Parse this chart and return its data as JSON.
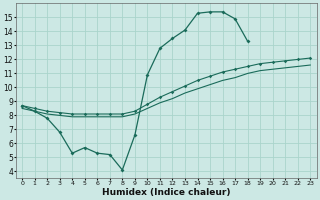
{
  "xlabel": "Humidex (Indice chaleur)",
  "background_color": "#cce8e4",
  "grid_color": "#aad4cc",
  "line_color": "#1a6b5a",
  "xlim": [
    -0.5,
    23.5
  ],
  "ylim": [
    3.5,
    16.0
  ],
  "yticks": [
    4,
    5,
    6,
    7,
    8,
    9,
    10,
    11,
    12,
    13,
    14,
    15
  ],
  "xticks": [
    0,
    1,
    2,
    3,
    4,
    5,
    6,
    7,
    8,
    9,
    10,
    11,
    12,
    13,
    14,
    15,
    16,
    17,
    18,
    19,
    20,
    21,
    22,
    23
  ],
  "curve_x": [
    0,
    1,
    2,
    3,
    4,
    5,
    6,
    7,
    8,
    9,
    10,
    11,
    12,
    13,
    14,
    15,
    16,
    17,
    18
  ],
  "curve_y": [
    8.7,
    8.3,
    7.8,
    6.8,
    5.3,
    5.7,
    5.3,
    5.2,
    4.1,
    6.6,
    10.9,
    12.8,
    13.5,
    14.1,
    15.3,
    15.4,
    15.4,
    14.9,
    13.3
  ],
  "reg1_x": [
    0,
    1,
    2,
    3,
    4,
    5,
    6,
    7,
    8,
    9,
    10,
    11,
    12,
    13,
    14,
    15,
    16,
    17,
    18,
    19,
    20,
    21,
    22,
    23
  ],
  "reg1_y": [
    8.7,
    8.5,
    8.3,
    8.2,
    8.1,
    8.1,
    8.1,
    8.1,
    8.1,
    8.3,
    8.8,
    9.3,
    9.7,
    10.1,
    10.5,
    10.8,
    11.1,
    11.3,
    11.5,
    11.7,
    11.8,
    11.9,
    12.0,
    12.1
  ],
  "reg2_x": [
    0,
    1,
    2,
    3,
    4,
    5,
    6,
    7,
    8,
    9,
    10,
    11,
    12,
    13,
    14,
    15,
    16,
    17,
    18,
    19,
    20,
    21,
    22,
    23
  ],
  "reg2_y": [
    8.5,
    8.3,
    8.1,
    8.0,
    7.9,
    7.9,
    7.9,
    7.9,
    7.9,
    8.1,
    8.5,
    8.9,
    9.2,
    9.6,
    9.9,
    10.2,
    10.5,
    10.7,
    11.0,
    11.2,
    11.3,
    11.4,
    11.5,
    11.6
  ]
}
